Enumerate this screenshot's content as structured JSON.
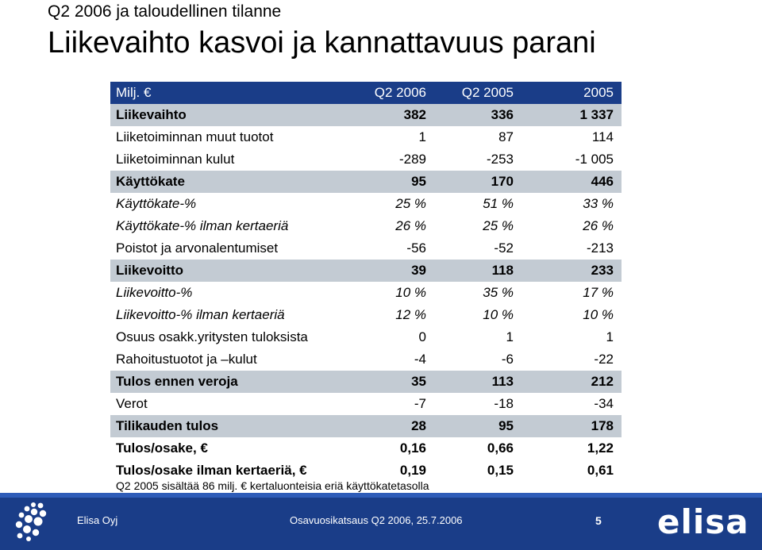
{
  "header": {
    "subtitle": "Q2 2006 ja taloudellinen tilanne",
    "title": "Liikevaihto kasvoi ja kannattavuus parani"
  },
  "table": {
    "columns": [
      "Milj. €",
      "Q2 2006",
      "Q2 2005",
      "2005"
    ],
    "rows": [
      {
        "label": "Liikevaihto",
        "v": [
          "382",
          "336",
          "1 337"
        ]
      },
      {
        "label": "Liiketoiminnan muut tuotot",
        "v": [
          "1",
          "87",
          "114"
        ]
      },
      {
        "label": "Liiketoiminnan kulut",
        "v": [
          "-289",
          "-253",
          "-1 005"
        ]
      },
      {
        "label": "Käyttökate",
        "v": [
          "95",
          "170",
          "446"
        ]
      },
      {
        "label": "Käyttökate-%",
        "v": [
          "25 %",
          "51  %",
          "33 %"
        ]
      },
      {
        "label": "Käyttökate-% ilman kertaeriä",
        "v": [
          "26 %",
          "25  %",
          "26 %"
        ]
      },
      {
        "label": "Poistot ja arvonalentumiset",
        "v": [
          "-56",
          "-52",
          "-213"
        ]
      },
      {
        "label": "Liikevoitto",
        "v": [
          "39",
          "118",
          "233"
        ]
      },
      {
        "label": "Liikevoitto-%",
        "v": [
          "10 %",
          "35 %",
          "17 %"
        ]
      },
      {
        "label": "Liikevoitto-% ilman kertaeriä",
        "v": [
          "12 %",
          "10 %",
          "10 %"
        ]
      },
      {
        "label": "Osuus osakk.yritysten tuloksista",
        "v": [
          "0",
          "1",
          "1"
        ]
      },
      {
        "label": "Rahoitustuotot ja –kulut",
        "v": [
          "-4",
          "-6",
          "-22"
        ]
      },
      {
        "label": "Tulos ennen veroja",
        "v": [
          "35",
          "113",
          "212"
        ]
      },
      {
        "label": "Verot",
        "v": [
          "-7",
          "-18",
          "-34"
        ]
      },
      {
        "label": "Tilikauden tulos",
        "v": [
          "28",
          "95",
          "178"
        ]
      },
      {
        "label": "Tulos/osake, €",
        "v": [
          "0,16",
          "0,66",
          "1,22"
        ]
      },
      {
        "label": "Tulos/osake ilman kertaeriä, €",
        "v": [
          "0,19",
          "0,15",
          "0,61"
        ]
      }
    ]
  },
  "footnote": "Q2 2005 sisältää 86 milj. € kertaluonteisia eriä käyttökatetasolla",
  "footer": {
    "company": "Elisa Oyj",
    "report": "Osavuosikatsaus Q2 2006, 25.7.2006",
    "page": "5",
    "logo_text": "elisa",
    "background": "#1a3d88"
  }
}
